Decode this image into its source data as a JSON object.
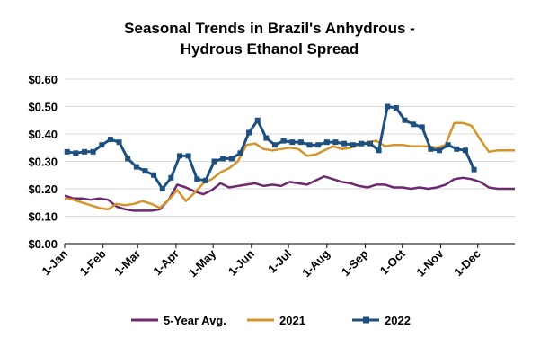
{
  "chart_data": {
    "type": "line",
    "title": [
      "Seasonal Trends in Brazil's Anhydrous -",
      "Hydrous Ethanol Spread"
    ],
    "xlabel": "",
    "ylabel": "",
    "x_range": [
      "2022-01-01",
      "2022-12-31"
    ],
    "ylim": [
      0.0,
      0.6
    ],
    "yticks": [
      0.0,
      0.1,
      0.2,
      0.3,
      0.4,
      0.5,
      0.6
    ],
    "ytick_labels": [
      "$0.00",
      "$0.10",
      "$0.20",
      "$0.30",
      "$0.40",
      "$0.50",
      "$0.60"
    ],
    "xticks": [
      "2022-01-01",
      "2022-02-01",
      "2022-03-01",
      "2022-04-01",
      "2022-05-01",
      "2022-06-01",
      "2022-07-01",
      "2022-08-01",
      "2022-09-01",
      "2022-10-01",
      "2022-11-01",
      "2022-12-01"
    ],
    "xtick_labels": [
      "1-Jan",
      "1-Feb",
      "1-Mar",
      "1-Apr",
      "1-May",
      "1-Jun",
      "1-Jul",
      "1-Aug",
      "1-Sep",
      "1-Oct",
      "1-Nov",
      "1-Dec"
    ],
    "grid": "horizontal",
    "legend_position": "bottom",
    "series": [
      {
        "name": "5-Year Avg.",
        "color": "#6e2a6e",
        "marker": "none",
        "points": [
          [
            "2022-01-01",
            0.175
          ],
          [
            "2022-01-08",
            0.165
          ],
          [
            "2022-01-15",
            0.165
          ],
          [
            "2022-01-22",
            0.16
          ],
          [
            "2022-01-29",
            0.165
          ],
          [
            "2022-02-05",
            0.16
          ],
          [
            "2022-02-12",
            0.135
          ],
          [
            "2022-02-19",
            0.125
          ],
          [
            "2022-02-26",
            0.12
          ],
          [
            "2022-03-05",
            0.12
          ],
          [
            "2022-03-12",
            0.12
          ],
          [
            "2022-03-19",
            0.125
          ],
          [
            "2022-03-26",
            0.16
          ],
          [
            "2022-04-02",
            0.215
          ],
          [
            "2022-04-09",
            0.205
          ],
          [
            "2022-04-16",
            0.19
          ],
          [
            "2022-04-23",
            0.18
          ],
          [
            "2022-04-30",
            0.195
          ],
          [
            "2022-05-07",
            0.22
          ],
          [
            "2022-05-14",
            0.205
          ],
          [
            "2022-05-21",
            0.21
          ],
          [
            "2022-05-28",
            0.215
          ],
          [
            "2022-06-04",
            0.22
          ],
          [
            "2022-06-11",
            0.21
          ],
          [
            "2022-06-18",
            0.215
          ],
          [
            "2022-06-25",
            0.21
          ],
          [
            "2022-07-02",
            0.225
          ],
          [
            "2022-07-09",
            0.22
          ],
          [
            "2022-07-16",
            0.215
          ],
          [
            "2022-07-23",
            0.23
          ],
          [
            "2022-07-30",
            0.245
          ],
          [
            "2022-08-06",
            0.235
          ],
          [
            "2022-08-13",
            0.225
          ],
          [
            "2022-08-20",
            0.22
          ],
          [
            "2022-08-27",
            0.21
          ],
          [
            "2022-09-03",
            0.205
          ],
          [
            "2022-09-10",
            0.215
          ],
          [
            "2022-09-17",
            0.215
          ],
          [
            "2022-09-24",
            0.205
          ],
          [
            "2022-10-01",
            0.205
          ],
          [
            "2022-10-08",
            0.2
          ],
          [
            "2022-10-15",
            0.205
          ],
          [
            "2022-10-22",
            0.2
          ],
          [
            "2022-10-29",
            0.205
          ],
          [
            "2022-11-05",
            0.215
          ],
          [
            "2022-11-12",
            0.235
          ],
          [
            "2022-11-19",
            0.24
          ],
          [
            "2022-11-26",
            0.235
          ],
          [
            "2022-12-03",
            0.225
          ],
          [
            "2022-12-10",
            0.205
          ],
          [
            "2022-12-17",
            0.2
          ],
          [
            "2022-12-24",
            0.2
          ],
          [
            "2022-12-31",
            0.2
          ]
        ]
      },
      {
        "name": "2021",
        "color": "#d4932b",
        "marker": "none",
        "points": [
          [
            "2022-01-01",
            0.165
          ],
          [
            "2022-01-08",
            0.16
          ],
          [
            "2022-01-15",
            0.15
          ],
          [
            "2022-01-22",
            0.14
          ],
          [
            "2022-01-29",
            0.13
          ],
          [
            "2022-02-05",
            0.125
          ],
          [
            "2022-02-12",
            0.145
          ],
          [
            "2022-02-19",
            0.14
          ],
          [
            "2022-02-26",
            0.145
          ],
          [
            "2022-03-05",
            0.155
          ],
          [
            "2022-03-12",
            0.145
          ],
          [
            "2022-03-19",
            0.13
          ],
          [
            "2022-03-26",
            0.16
          ],
          [
            "2022-04-02",
            0.195
          ],
          [
            "2022-04-09",
            0.155
          ],
          [
            "2022-04-16",
            0.185
          ],
          [
            "2022-04-23",
            0.22
          ],
          [
            "2022-04-30",
            0.235
          ],
          [
            "2022-05-07",
            0.26
          ],
          [
            "2022-05-14",
            0.275
          ],
          [
            "2022-05-21",
            0.3
          ],
          [
            "2022-05-28",
            0.36
          ],
          [
            "2022-06-04",
            0.365
          ],
          [
            "2022-06-11",
            0.345
          ],
          [
            "2022-06-18",
            0.34
          ],
          [
            "2022-06-25",
            0.345
          ],
          [
            "2022-07-02",
            0.35
          ],
          [
            "2022-07-09",
            0.345
          ],
          [
            "2022-07-16",
            0.32
          ],
          [
            "2022-07-23",
            0.325
          ],
          [
            "2022-07-30",
            0.34
          ],
          [
            "2022-08-06",
            0.355
          ],
          [
            "2022-08-13",
            0.345
          ],
          [
            "2022-08-20",
            0.35
          ],
          [
            "2022-08-27",
            0.36
          ],
          [
            "2022-09-03",
            0.37
          ],
          [
            "2022-09-10",
            0.375
          ],
          [
            "2022-09-17",
            0.355
          ],
          [
            "2022-09-24",
            0.36
          ],
          [
            "2022-10-01",
            0.36
          ],
          [
            "2022-10-08",
            0.355
          ],
          [
            "2022-10-15",
            0.355
          ],
          [
            "2022-10-22",
            0.355
          ],
          [
            "2022-10-29",
            0.35
          ],
          [
            "2022-11-05",
            0.36
          ],
          [
            "2022-11-12",
            0.44
          ],
          [
            "2022-11-19",
            0.44
          ],
          [
            "2022-11-26",
            0.43
          ],
          [
            "2022-12-03",
            0.38
          ],
          [
            "2022-12-10",
            0.335
          ],
          [
            "2022-12-17",
            0.34
          ],
          [
            "2022-12-24",
            0.34
          ],
          [
            "2022-12-31",
            0.34
          ]
        ]
      },
      {
        "name": "2022",
        "color": "#1d4f7f",
        "marker": "square",
        "points": [
          [
            "2022-01-03",
            0.335
          ],
          [
            "2022-01-10",
            0.33
          ],
          [
            "2022-01-17",
            0.335
          ],
          [
            "2022-01-24",
            0.335
          ],
          [
            "2022-01-31",
            0.36
          ],
          [
            "2022-02-07",
            0.38
          ],
          [
            "2022-02-14",
            0.37
          ],
          [
            "2022-02-21",
            0.31
          ],
          [
            "2022-02-28",
            0.28
          ],
          [
            "2022-03-07",
            0.265
          ],
          [
            "2022-03-14",
            0.25
          ],
          [
            "2022-03-21",
            0.2
          ],
          [
            "2022-03-28",
            0.24
          ],
          [
            "2022-04-04",
            0.32
          ],
          [
            "2022-04-11",
            0.32
          ],
          [
            "2022-04-18",
            0.235
          ],
          [
            "2022-04-25",
            0.23
          ],
          [
            "2022-05-02",
            0.3
          ],
          [
            "2022-05-09",
            0.31
          ],
          [
            "2022-05-16",
            0.31
          ],
          [
            "2022-05-23",
            0.33
          ],
          [
            "2022-05-30",
            0.405
          ],
          [
            "2022-06-06",
            0.45
          ],
          [
            "2022-06-13",
            0.385
          ],
          [
            "2022-06-20",
            0.36
          ],
          [
            "2022-06-27",
            0.375
          ],
          [
            "2022-07-04",
            0.37
          ],
          [
            "2022-07-11",
            0.37
          ],
          [
            "2022-07-18",
            0.36
          ],
          [
            "2022-07-25",
            0.36
          ],
          [
            "2022-08-01",
            0.37
          ],
          [
            "2022-08-08",
            0.37
          ],
          [
            "2022-08-15",
            0.365
          ],
          [
            "2022-08-22",
            0.36
          ],
          [
            "2022-08-29",
            0.365
          ],
          [
            "2022-09-05",
            0.365
          ],
          [
            "2022-09-12",
            0.34
          ],
          [
            "2022-09-19",
            0.5
          ],
          [
            "2022-09-26",
            0.495
          ],
          [
            "2022-10-03",
            0.45
          ],
          [
            "2022-10-10",
            0.435
          ],
          [
            "2022-10-17",
            0.425
          ],
          [
            "2022-10-24",
            0.345
          ],
          [
            "2022-10-31",
            0.34
          ],
          [
            "2022-11-07",
            0.36
          ],
          [
            "2022-11-14",
            0.345
          ],
          [
            "2022-11-21",
            0.34
          ],
          [
            "2022-11-28",
            0.27
          ]
        ]
      }
    ]
  }
}
